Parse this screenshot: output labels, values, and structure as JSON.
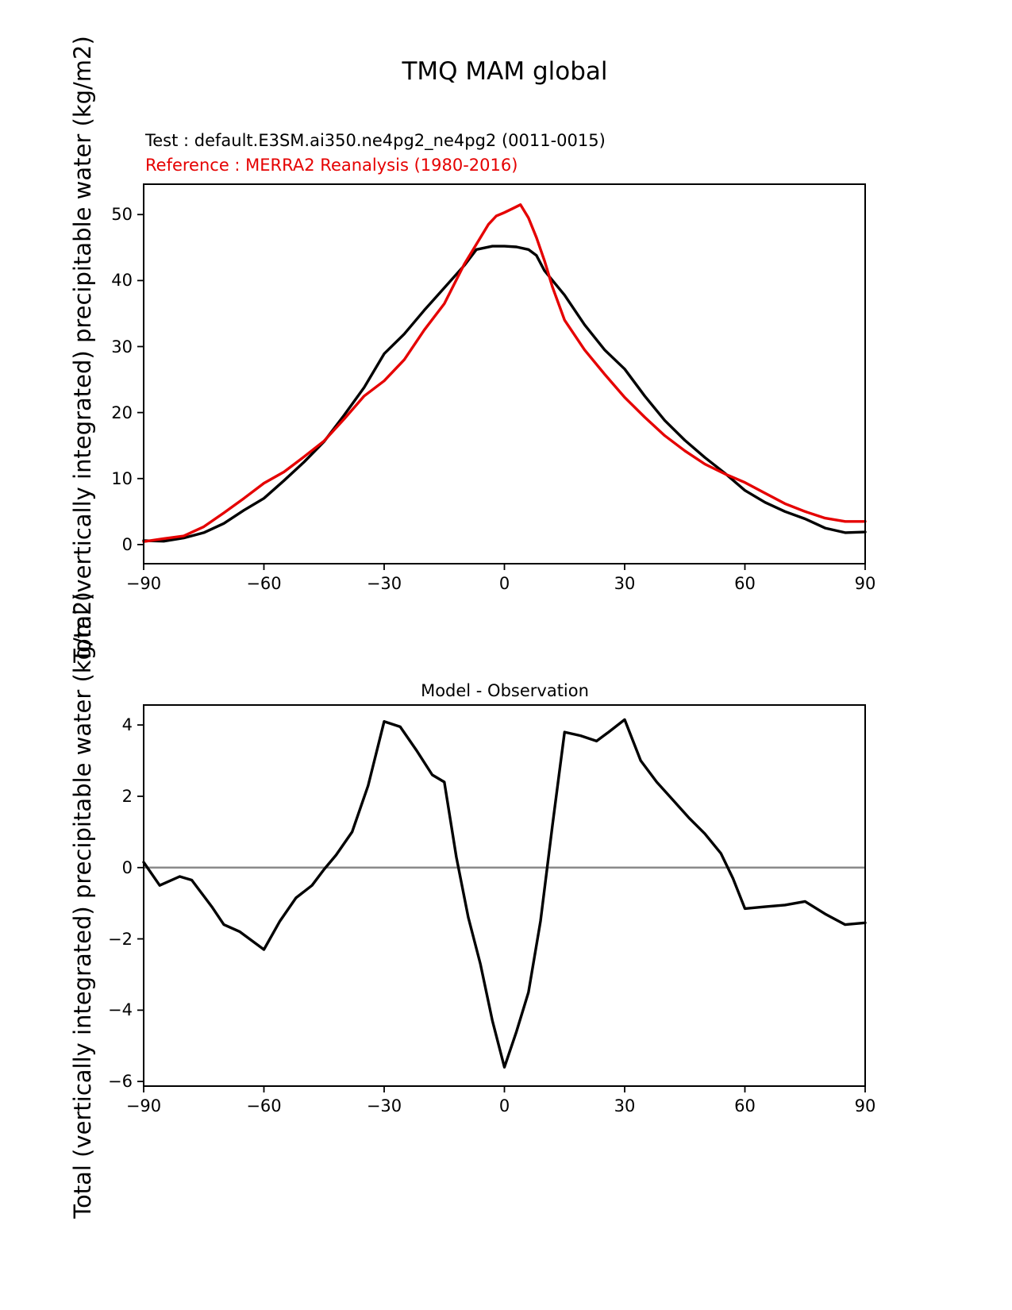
{
  "figure": {
    "title": "TMQ MAM global",
    "test_line": "Test : default.E3SM.ai350.ne4pg2_ne4pg2 (0011-0015)",
    "reference_line": "Reference : MERRA2 Reanalysis (1980-2016)",
    "colors": {
      "test": "#000000",
      "reference": "#e50000",
      "zero_line": "#8a8a8a",
      "axis": "#000000"
    }
  },
  "chart_data": [
    {
      "type": "line",
      "title": "TMQ MAM global",
      "ylabel": "Total (vertically integrated) precipitable water (kg/m2)",
      "xlabel": "",
      "xlim": [
        -90,
        90
      ],
      "ylim": [
        -2.9,
        54.6
      ],
      "xticks": [
        -90,
        -60,
        -30,
        0,
        30,
        60,
        90
      ],
      "yticks": [
        0,
        10,
        20,
        30,
        40,
        50
      ],
      "grid": false,
      "legend_position": "top-left-above-axes",
      "series": [
        {
          "name": "Test : default.E3SM.ai350.ne4pg2_ne4pg2 (0011-0015)",
          "color": "#000000",
          "x": [
            -90,
            -85,
            -80,
            -75,
            -70,
            -65,
            -60,
            -55,
            -50,
            -45,
            -40,
            -35,
            -30,
            -25,
            -20,
            -15,
            -10,
            -7,
            -3,
            0,
            3,
            6,
            8,
            10,
            15,
            20,
            25,
            30,
            35,
            40,
            45,
            50,
            55,
            60,
            65,
            70,
            75,
            80,
            85,
            90
          ],
          "y": [
            0.6,
            0.5,
            1.0,
            1.8,
            3.2,
            5.2,
            7.0,
            9.7,
            12.5,
            15.6,
            19.6,
            23.8,
            28.9,
            31.9,
            35.5,
            38.9,
            42.3,
            44.7,
            45.2,
            45.2,
            45.1,
            44.7,
            43.8,
            41.5,
            37.8,
            33.3,
            29.5,
            26.6,
            22.5,
            18.8,
            15.8,
            13.2,
            10.8,
            8.2,
            6.4,
            5.0,
            3.9,
            2.5,
            1.8,
            1.9
          ]
        },
        {
          "name": "Reference : MERRA2 Reanalysis (1980-2016)",
          "color": "#e50000",
          "x": [
            -90,
            -85,
            -80,
            -75,
            -70,
            -65,
            -60,
            -55,
            -50,
            -45,
            -40,
            -35,
            -30,
            -25,
            -20,
            -15,
            -10,
            -7,
            -4,
            -2,
            0,
            2,
            4,
            6,
            8,
            10,
            12,
            15,
            20,
            25,
            30,
            35,
            40,
            45,
            50,
            55,
            60,
            65,
            70,
            75,
            80,
            85,
            90
          ],
          "y": [
            0.45,
            0.9,
            1.3,
            2.7,
            4.8,
            7.0,
            9.3,
            11.0,
            13.3,
            15.7,
            19.0,
            22.5,
            24.8,
            28.0,
            32.5,
            36.5,
            42.5,
            45.5,
            48.5,
            49.8,
            50.3,
            50.9,
            51.5,
            49.5,
            46.5,
            43.0,
            39.0,
            34.0,
            29.5,
            25.8,
            22.3,
            19.3,
            16.5,
            14.2,
            12.2,
            10.7,
            9.4,
            7.8,
            6.2,
            5.0,
            4.0,
            3.5,
            3.5
          ]
        }
      ]
    },
    {
      "type": "line",
      "title": "Model - Observation",
      "ylabel": "Total (vertically integrated) precipitable water (kg/m2)",
      "xlabel": "",
      "xlim": [
        -90,
        90
      ],
      "ylim": [
        -6.13,
        4.56
      ],
      "xticks": [
        -90,
        -60,
        -30,
        0,
        30,
        60,
        90
      ],
      "yticks": [
        -6,
        -4,
        -2,
        0,
        2,
        4
      ],
      "grid": false,
      "zero_line": true,
      "series": [
        {
          "name": "Model - Observation",
          "color": "#000000",
          "x": [
            -90,
            -86,
            -81,
            -78,
            -73,
            -70,
            -66,
            -60,
            -56,
            -52,
            -48,
            -45,
            -42,
            -38,
            -34,
            -30,
            -26,
            -22,
            -18,
            -15,
            -12,
            -9,
            -6,
            -3,
            0,
            3,
            6,
            9,
            12,
            15,
            19,
            23,
            26,
            30,
            34,
            38,
            42,
            46,
            50,
            54,
            57,
            60,
            65,
            70,
            75,
            80,
            85,
            90
          ],
          "y": [
            0.15,
            -0.5,
            -0.25,
            -0.35,
            -1.1,
            -1.6,
            -1.8,
            -2.3,
            -1.5,
            -0.85,
            -0.5,
            -0.05,
            0.35,
            1.0,
            2.3,
            4.1,
            3.95,
            3.3,
            2.6,
            2.4,
            0.3,
            -1.4,
            -2.7,
            -4.3,
            -5.6,
            -4.6,
            -3.5,
            -1.5,
            1.2,
            3.8,
            3.7,
            3.55,
            3.8,
            4.15,
            3.0,
            2.4,
            1.9,
            1.4,
            0.95,
            0.4,
            -0.3,
            -1.15,
            -1.1,
            -1.05,
            -0.95,
            -1.3,
            -1.6,
            -1.55
          ]
        }
      ]
    }
  ]
}
